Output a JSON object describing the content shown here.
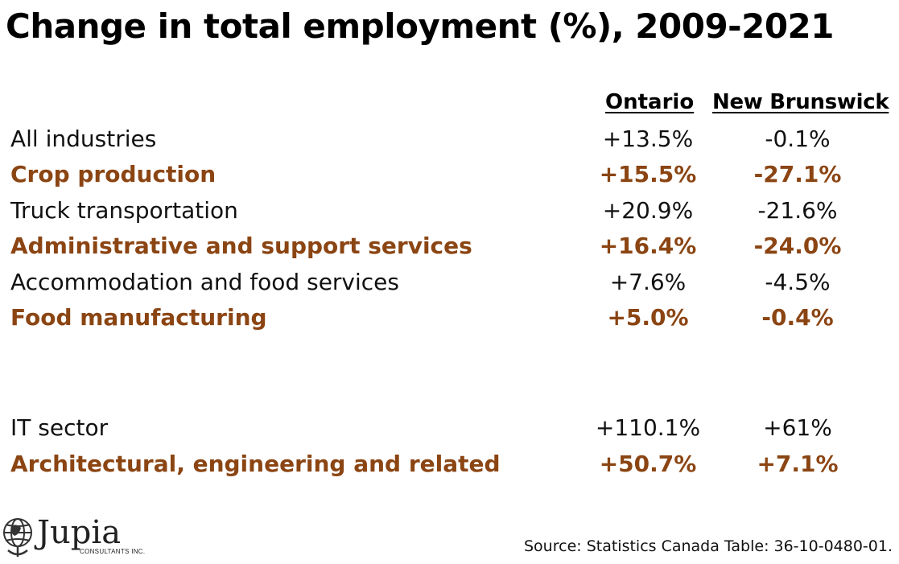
{
  "title": "Change in total employment (%), 2009-2021",
  "colors": {
    "highlight": "#8B4513",
    "text": "#111111"
  },
  "chart_data": {
    "type": "table",
    "title": "Change in total employment (%), 2009-2021",
    "columns": [
      "Ontario",
      "New Brunswick"
    ],
    "rows": [
      {
        "label": "All industries",
        "ontario": "+13.5%",
        "new_brunswick": "-0.1%",
        "highlight": false
      },
      {
        "label": "Crop production",
        "ontario": "+15.5%",
        "new_brunswick": "-27.1%",
        "highlight": true
      },
      {
        "label": "Truck transportation",
        "ontario": "+20.9%",
        "new_brunswick": "-21.6%",
        "highlight": false
      },
      {
        "label": "Administrative and support services",
        "ontario": "+16.4%",
        "new_brunswick": "-24.0%",
        "highlight": true
      },
      {
        "label": "Accommodation and food services",
        "ontario": "+7.6%",
        "new_brunswick": "-4.5%",
        "highlight": false
      },
      {
        "label": "Food manufacturing",
        "ontario": "+5.0%",
        "new_brunswick": "-0.4%",
        "highlight": true
      },
      {
        "label": "IT sector",
        "ontario": "+110.1%",
        "new_brunswick": "+61%",
        "highlight": false
      },
      {
        "label": "Architectural, engineering and related",
        "ontario": "+50.7%",
        "new_brunswick": "+7.1%",
        "highlight": true
      }
    ]
  },
  "logo": {
    "name": "Jupia",
    "subtitle": "CONSULTANTS INC."
  },
  "source": "Source: Statistics Canada Table: 36-10-0480-01."
}
